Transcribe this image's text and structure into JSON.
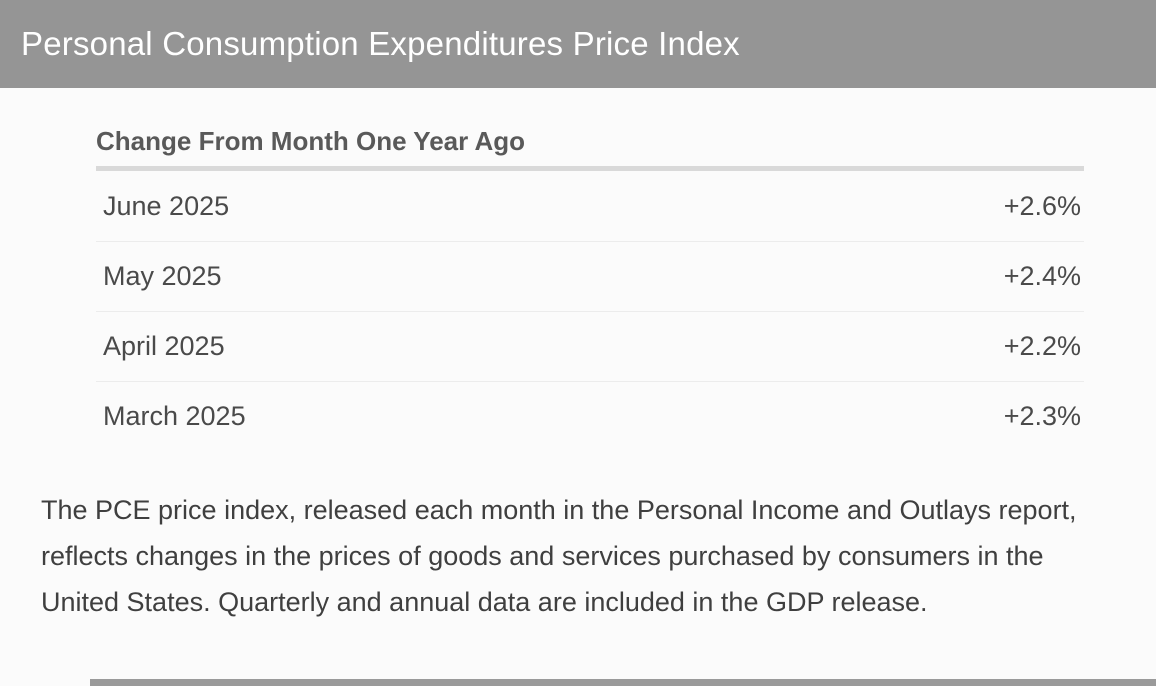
{
  "header": {
    "title": "Personal Consumption Expenditures Price Index"
  },
  "table": {
    "title": "Change From Month One Year Ago",
    "rows": [
      {
        "label": "June 2025",
        "value": "+2.6%"
      },
      {
        "label": "May 2025",
        "value": "+2.4%"
      },
      {
        "label": "April 2025",
        "value": "+2.2%"
      },
      {
        "label": "March 2025",
        "value": "+2.3%"
      }
    ]
  },
  "description": "The PCE price index, released each month in the Personal Income and Outlays report, reflects changes in the prices of goods and services purchased by consumers in the United States. Quarterly and annual data are included in the GDP release.",
  "colors": {
    "header_bg": "#959595",
    "header_text": "#ffffff",
    "section_title_text": "#595959",
    "title_rule": "#d9d9d9",
    "row_text": "#4a4a4a",
    "row_separator": "#ececec",
    "body_text": "#3f3f3f",
    "page_bg": "#fbfbfb"
  },
  "chart_data": {
    "type": "table",
    "title": "Change From Month One Year Ago",
    "categories": [
      "June 2025",
      "May 2025",
      "April 2025",
      "March 2025"
    ],
    "values": [
      2.6,
      2.4,
      2.2,
      2.3
    ],
    "value_labels": [
      "+2.6%",
      "+2.4%",
      "+2.2%",
      "+2.3%"
    ]
  }
}
